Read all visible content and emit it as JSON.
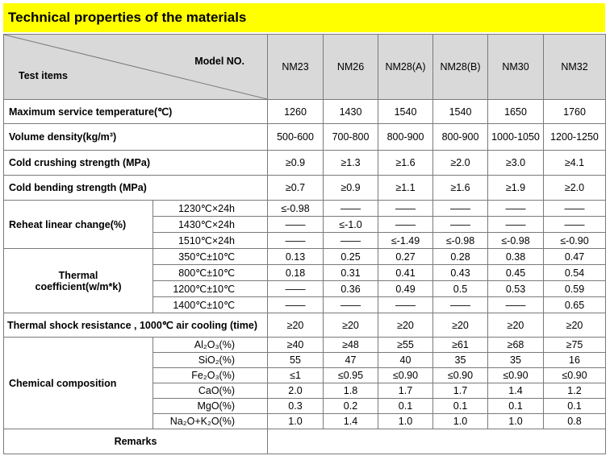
{
  "title": "Technical properties of the materials",
  "header": {
    "model_label": "Model NO.",
    "test_label": "Test items",
    "models": [
      "NM23",
      "NM26",
      "NM28(A)",
      "NM28(B)",
      "NM30",
      "NM32"
    ]
  },
  "rows": {
    "max_temp": {
      "label": "Maximum service temperature(℃)",
      "values": [
        "1260",
        "1430",
        "1540",
        "1540",
        "1650",
        "1760"
      ]
    },
    "density": {
      "label": "Volume density(kg/m³)",
      "values": [
        "500-600",
        "700-800",
        "800-900",
        "800-900",
        "1000-1050",
        "1200-1250"
      ]
    },
    "crushing": {
      "label": "Cold crushing strength (MPa)",
      "values": [
        "≥0.9",
        "≥1.3",
        "≥1.6",
        "≥2.0",
        "≥3.0",
        "≥4.1"
      ]
    },
    "bending": {
      "label": "Cold bending strength (MPa)",
      "values": [
        "≥0.7",
        "≥0.9",
        "≥1.1",
        "≥1.6",
        "≥1.9",
        "≥2.0"
      ]
    },
    "reheat": {
      "label": "Reheat linear change(%)",
      "subrows": [
        {
          "condition": "1230℃×24h",
          "values": [
            "≤-0.98",
            "——",
            "——",
            "——",
            "——",
            "——"
          ]
        },
        {
          "condition": "1430℃×24h",
          "values": [
            "——",
            "≤-1.0",
            "——",
            "——",
            "——",
            "——"
          ]
        },
        {
          "condition": "1510℃×24h",
          "values": [
            "——",
            "——",
            "≤-1.49",
            "≤-0.98",
            "≤-0.98",
            "≤-0.90"
          ]
        }
      ]
    },
    "thermal": {
      "label_line1": "Thermal",
      "label_line2": "coefficient(w/m*k)",
      "subrows": [
        {
          "condition": "350℃±10℃",
          "values": [
            "0.13",
            "0.25",
            "0.27",
            "0.28",
            "0.38",
            "0.47"
          ]
        },
        {
          "condition": "800℃±10℃",
          "values": [
            "0.18",
            "0.31",
            "0.41",
            "0.43",
            "0.45",
            "0.54"
          ]
        },
        {
          "condition": "1200℃±10℃",
          "values": [
            "——",
            "0.36",
            "0.49",
            "0.5",
            "0.53",
            "0.59"
          ]
        },
        {
          "condition": "1400℃±10℃",
          "values": [
            "——",
            "——",
            "——",
            "——",
            "——",
            "0.65"
          ]
        }
      ]
    },
    "shock": {
      "label": "Thermal shock resistance , 1000℃ air cooling (time)",
      "values": [
        "≥20",
        "≥20",
        "≥20",
        "≥20",
        "≥20",
        "≥20"
      ]
    },
    "chem": {
      "label": "Chemical composition",
      "subrows": [
        {
          "condition": "Al₂O₃(%)",
          "values": [
            "≥40",
            "≥48",
            "≥55",
            "≥61",
            "≥68",
            "≥75"
          ]
        },
        {
          "condition": "SiO₂(%)",
          "values": [
            "55",
            "47",
            "40",
            "35",
            "35",
            "16"
          ]
        },
        {
          "condition": "Fe₂O₃(%)",
          "values": [
            "≤1",
            "≤0.95",
            "≤0.90",
            "≤0.90",
            "≤0.90",
            "≤0.90"
          ]
        },
        {
          "condition": "CaO(%)",
          "values": [
            "2.0",
            "1.8",
            "1.7",
            "1.7",
            "1.4",
            "1.2"
          ]
        },
        {
          "condition": "MgO(%)",
          "values": [
            "0.3",
            "0.2",
            "0.1",
            "0.1",
            "0.1",
            "0.1"
          ]
        },
        {
          "condition": "Na₂O+K₂O(%)",
          "values": [
            "1.0",
            "1.4",
            "1.0",
            "1.0",
            "1.0",
            "0.8"
          ]
        }
      ]
    },
    "remarks": {
      "label": "Remarks"
    }
  }
}
